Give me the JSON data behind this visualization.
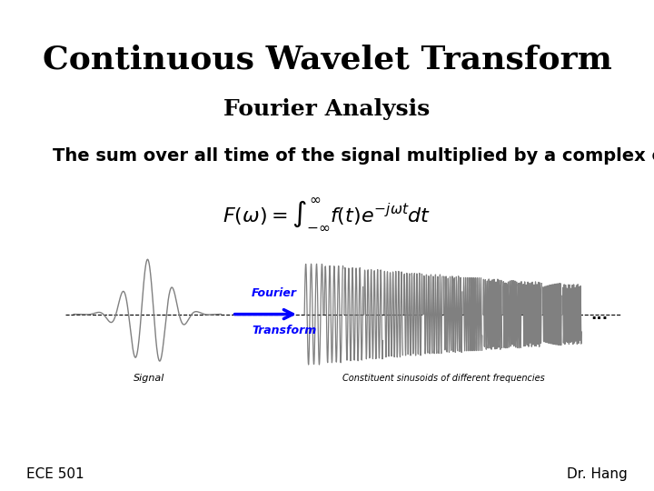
{
  "title": "Continuous Wavelet Transform",
  "subtitle": "Fourier Analysis",
  "description": "The sum over all time of the signal multiplied by a complex exponential",
  "formula": "$F(\\omega) = \\int_{-\\infty}^{\\infty} f(t)e^{-j\\omega t}dt$",
  "label_fourier": "Fourier",
  "label_transform": "Transform",
  "label_signal": "Signal",
  "label_constituent": "Constituent sinusoids of different frequencies",
  "label_dots": "...",
  "footer_left": "ECE 501",
  "footer_right": "Dr. Hang",
  "bg_color": "#ffffff",
  "title_fontsize": 26,
  "subtitle_fontsize": 18,
  "desc_fontsize": 14,
  "formula_fontsize": 16,
  "footer_fontsize": 11
}
